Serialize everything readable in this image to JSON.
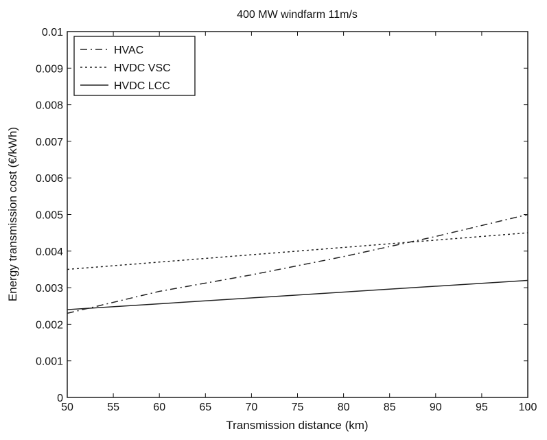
{
  "chart_data": {
    "type": "line",
    "title": "400 MW windfarm 11m/s",
    "xlabel": "Transmission distance (km)",
    "ylabel": "Energy transmission cost (€/kWh)",
    "xlim": [
      50,
      100
    ],
    "ylim": [
      0,
      0.01
    ],
    "x_ticks": [
      50,
      55,
      60,
      65,
      70,
      75,
      80,
      85,
      90,
      95,
      100
    ],
    "x_tick_labels": [
      "50",
      "55",
      "60",
      "65",
      "70",
      "75",
      "80",
      "85",
      "90",
      "95",
      "100"
    ],
    "y_ticks": [
      0,
      0.001,
      0.002,
      0.003,
      0.004,
      0.005,
      0.006,
      0.007,
      0.008,
      0.009,
      0.01
    ],
    "y_tick_labels": [
      "0",
      "0.001",
      "0.002",
      "0.003",
      "0.004",
      "0.005",
      "0.006",
      "0.007",
      "0.008",
      "0.009",
      "0.01"
    ],
    "grid": false,
    "legend_position": "top-left",
    "series": [
      {
        "name": "HVAC",
        "line_style": "dash-dot",
        "color": "#222222",
        "x": [
          50,
          60,
          70,
          80,
          90,
          100
        ],
        "y": [
          0.0023,
          0.0029,
          0.00335,
          0.00385,
          0.0044,
          0.005
        ]
      },
      {
        "name": "HVDC VSC",
        "line_style": "dotted",
        "color": "#222222",
        "x": [
          50,
          100
        ],
        "y": [
          0.0035,
          0.0045
        ]
      },
      {
        "name": "HVDC LCC",
        "line_style": "solid",
        "color": "#222222",
        "x": [
          50,
          100
        ],
        "y": [
          0.0024,
          0.0032
        ]
      }
    ]
  }
}
